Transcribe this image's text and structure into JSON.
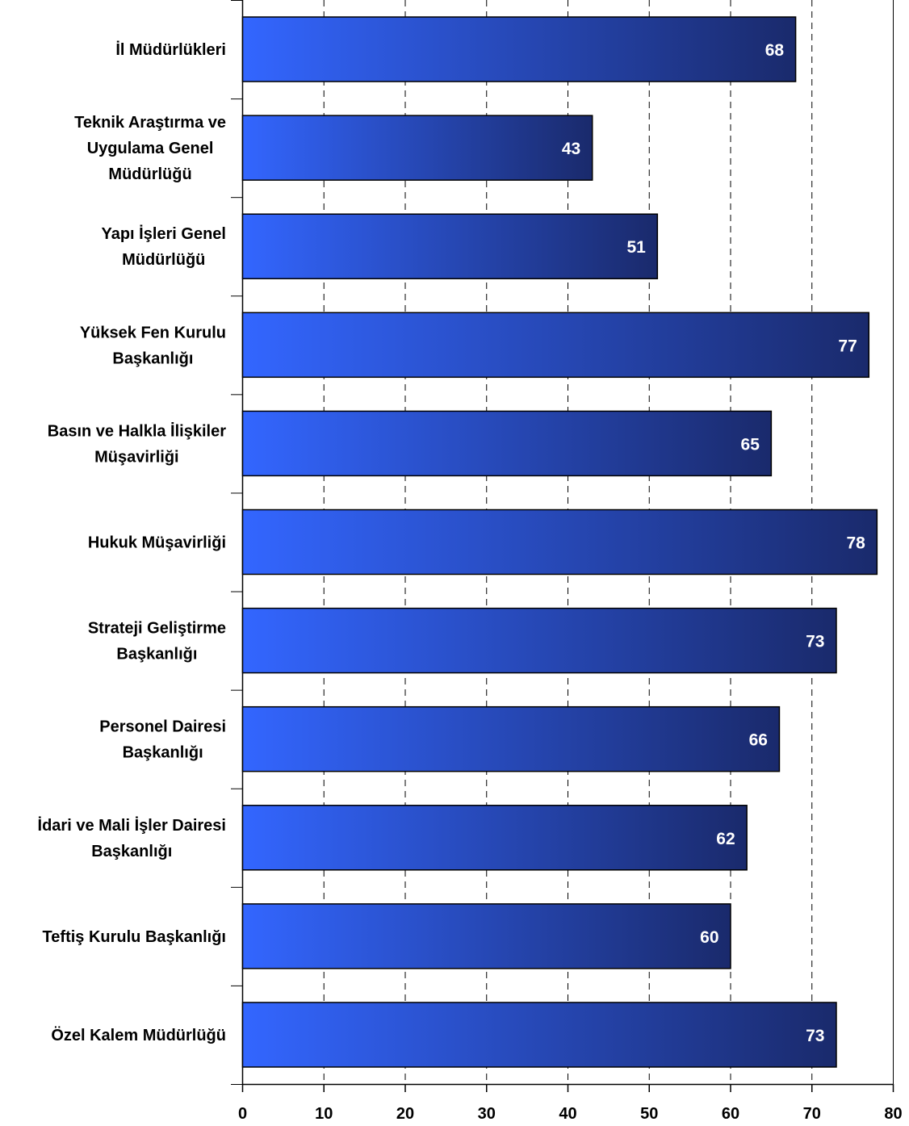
{
  "chart_data": {
    "type": "bar",
    "orientation": "horizontal",
    "categories": [
      "İl Müdürlükleri",
      "Teknik Araştırma ve Uygulama Genel Müdürlüğü",
      "Yapı İşleri Genel Müdürlüğü",
      "Yüksek Fen Kurulu Başkanlığı",
      "Basın ve Halkla İlişkiler Müşavirliği",
      "Hukuk Müşavirliği",
      "Strateji Geliştirme Başkanlığı",
      "Personel Dairesi Başkanlığı",
      "İdari ve Mali İşler Dairesi Başkanlığı",
      "Teftiş Kurulu Başkanlığı",
      "Özel Kalem Müdürlüğü"
    ],
    "category_lines": [
      [
        "İl Müdürlükleri"
      ],
      [
        "Teknik Araştırma ve",
        "Uygulama Genel",
        "Müdürlüğü"
      ],
      [
        "Yapı İşleri Genel",
        "Müdürlüğü"
      ],
      [
        "Yüksek Fen Kurulu",
        "Başkanlığı"
      ],
      [
        "Basın ve Halkla İlişkiler",
        "Müşavirliği"
      ],
      [
        "Hukuk Müşavirliği"
      ],
      [
        "Strateji Geliştirme",
        "Başkanlığı"
      ],
      [
        "Personel Dairesi",
        "Başkanlığı"
      ],
      [
        "İdari ve Mali İşler Dairesi",
        "Başkanlığı"
      ],
      [
        "Teftiş Kurulu Başkanlığı"
      ],
      [
        "Özel Kalem Müdürlüğü"
      ]
    ],
    "values": [
      68,
      43,
      51,
      77,
      65,
      78,
      73,
      66,
      62,
      60,
      73
    ],
    "data_labels": [
      "68",
      "43",
      "51",
      "77",
      "65",
      "78",
      "73",
      "66",
      "62",
      "60",
      "73"
    ],
    "xlim": [
      0,
      80
    ],
    "xticks": [
      0,
      10,
      20,
      30,
      40,
      50,
      60,
      70,
      80
    ],
    "xtick_labels": [
      "0",
      "10",
      "20",
      "30",
      "40",
      "50",
      "60",
      "70",
      "80"
    ],
    "title": "",
    "xlabel": "",
    "ylabel": "",
    "grid": "vertical dashed",
    "legend": "none",
    "colors": {
      "bar_light": "#3366ff",
      "bar_dark": "#1a2a6c",
      "bar_outline": "#000000",
      "grid": "#000000",
      "data_label": "#ffffff"
    }
  }
}
